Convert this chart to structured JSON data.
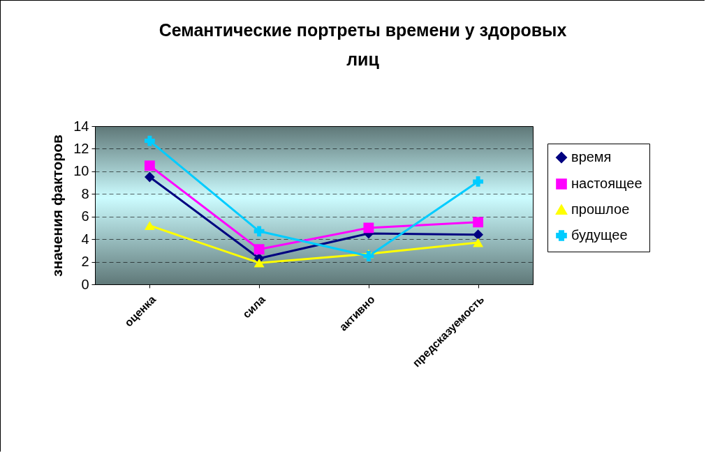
{
  "chart_data": {
    "type": "line",
    "title": "Семантические портреты времени у здоровых лиц",
    "ylabel": "значения факторов",
    "categories": [
      "оценка",
      "сила",
      "активно",
      "предсказуемость"
    ],
    "ylim": [
      0,
      14
    ],
    "yticks": [
      0,
      2,
      4,
      6,
      8,
      10,
      12,
      14
    ],
    "grid": "y",
    "legend": "right",
    "line_style": "solid",
    "series": [
      {
        "name": "время",
        "color": "#000080",
        "marker": "diamond",
        "values": [
          9.5,
          2.3,
          4.5,
          4.4
        ]
      },
      {
        "name": "настоящее",
        "color": "#ff00ff",
        "marker": "square",
        "values": [
          10.5,
          3.1,
          5.0,
          5.5
        ]
      },
      {
        "name": "прошлое",
        "color": "#ffff00",
        "marker": "triangle",
        "values": [
          5.2,
          1.9,
          2.7,
          3.7
        ]
      },
      {
        "name": "будущее",
        "color": "#00ccff",
        "marker": "cross",
        "values": [
          12.7,
          4.7,
          2.5,
          9.1
        ]
      }
    ]
  }
}
